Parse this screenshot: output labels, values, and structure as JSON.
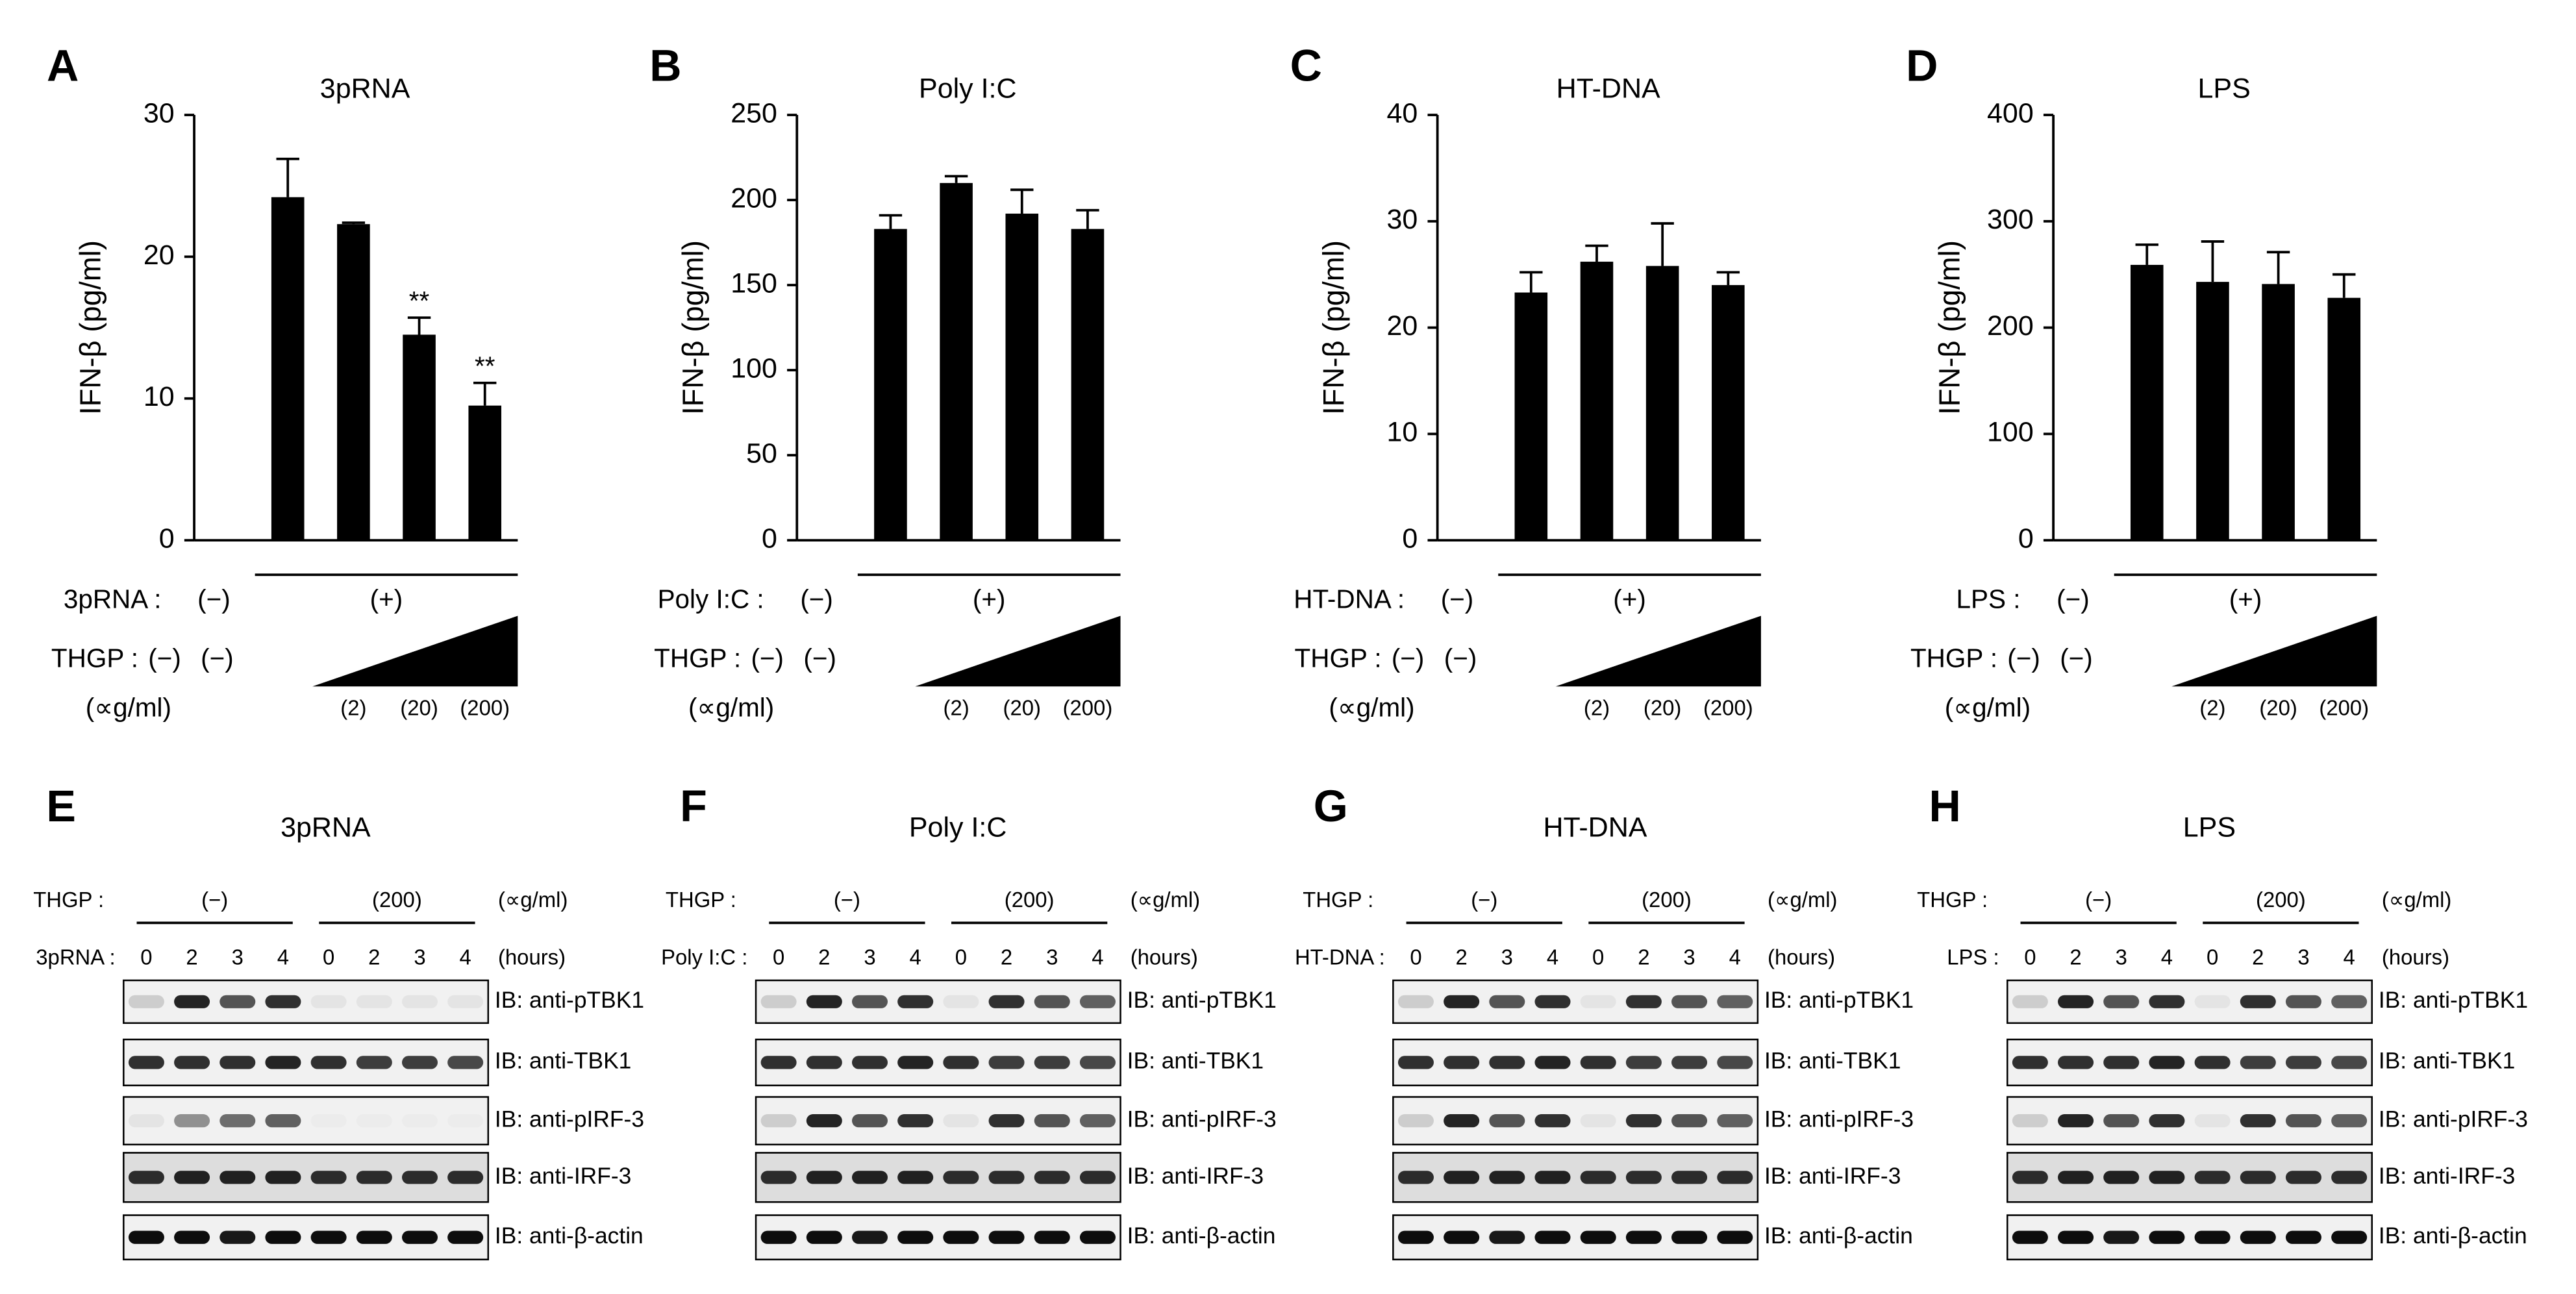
{
  "chart_data": [
    {
      "type": "bar",
      "panel": "A",
      "title": "3pRNA",
      "y_label": "IFN-β (pg/ml)",
      "color": "#000000",
      "categories": [
        null,
        null,
        null,
        null,
        null
      ],
      "values": [
        0,
        24.2,
        22.3,
        14.5,
        9.5
      ],
      "errors": [
        null,
        2.7,
        0.1,
        1.2,
        1.6
      ],
      "annotations": [
        null,
        null,
        null,
        "**",
        "**"
      ],
      "ylim": [
        0,
        30
      ],
      "yticks": [
        0,
        10,
        20,
        30
      ],
      "treatments": {
        "stim_label": "3pRNA :",
        "stim_neg": "(−)",
        "stim_pos": "(+)",
        "dose_label": "THGP :",
        "dose_neg": [
          "(−)",
          "(−)"
        ],
        "unit": "(∝g/ml)",
        "doses": [
          "(2)",
          "(20)",
          "(200)"
        ]
      }
    },
    {
      "type": "bar",
      "panel": "B",
      "title": "Poly I:C",
      "y_label": "IFN-β (pg/ml)",
      "color": "#000000",
      "categories": [
        null,
        null,
        null,
        null,
        null
      ],
      "values": [
        0,
        183,
        210,
        192,
        183
      ],
      "errors": [
        null,
        8,
        4,
        14,
        11
      ],
      "ylim": [
        0,
        250
      ],
      "yticks": [
        0,
        50,
        100,
        150,
        200,
        250
      ],
      "treatments": {
        "stim_label": "Poly I:C :",
        "stim_neg": "(−)",
        "stim_pos": "(+)",
        "dose_label": "THGP :",
        "dose_neg": [
          "(−)",
          "(−)"
        ],
        "unit": "(∝g/ml)",
        "doses": [
          "(2)",
          "(20)",
          "(200)"
        ]
      }
    },
    {
      "type": "bar",
      "panel": "C",
      "title": "HT-DNA",
      "y_label": "IFN-β (pg/ml)",
      "color": "#000000",
      "categories": [
        null,
        null,
        null,
        null,
        null
      ],
      "values": [
        0,
        23.3,
        26.2,
        25.8,
        24
      ],
      "errors": [
        null,
        1.9,
        1.5,
        4.0,
        1.2
      ],
      "ylim": [
        0,
        40
      ],
      "yticks": [
        0,
        10,
        20,
        30,
        40
      ],
      "treatments": {
        "stim_label": "HT-DNA :",
        "stim_neg": "(−)",
        "stim_pos": "(+)",
        "dose_label": "THGP :",
        "dose_neg": [
          "(−)",
          "(−)"
        ],
        "unit": "(∝g/ml)",
        "doses": [
          "(2)",
          "(20)",
          "(200)"
        ]
      }
    },
    {
      "type": "bar",
      "panel": "D",
      "title": "LPS",
      "y_label": "IFN-β (pg/ml)",
      "color": "#000000",
      "categories": [
        null,
        null,
        null,
        null,
        null
      ],
      "values": [
        0,
        259,
        243,
        241,
        228
      ],
      "errors": [
        null,
        19,
        38,
        30,
        22
      ],
      "ylim": [
        0,
        400
      ],
      "yticks": [
        0,
        100,
        200,
        300,
        400
      ],
      "treatments": {
        "stim_label": "LPS :",
        "stim_neg": "(−)",
        "stim_pos": "(+)",
        "dose_label": "THGP :",
        "dose_neg": [
          "(−)",
          "(−)"
        ],
        "unit": "(∝g/ml)",
        "doses": [
          "(2)",
          "(20)",
          "(200)"
        ]
      }
    }
  ],
  "blots": [
    {
      "panel": "E",
      "title": "3pRNA",
      "dose_label": "THGP :",
      "groups": [
        "(−)",
        "(200)"
      ],
      "unit": "(∝g/ml)",
      "stim_label": "3pRNA :",
      "times": [
        "0",
        "2",
        "3",
        "4",
        "0",
        "2",
        "3",
        "4"
      ],
      "time_unit": "(hours)",
      "antibodies": [
        "IB: anti-pTBK1",
        "IB: anti-TBK1",
        "IB: anti-pIRF-3",
        "IB: anti-IRF-3",
        "IB: anti-β-actin"
      ]
    },
    {
      "panel": "F",
      "title": "Poly I:C",
      "dose_label": "THGP :",
      "groups": [
        "(−)",
        "(200)"
      ],
      "unit": "(∝g/ml)",
      "stim_label": "Poly I:C :",
      "times": [
        "0",
        "2",
        "3",
        "4",
        "0",
        "2",
        "3",
        "4"
      ],
      "time_unit": "(hours)",
      "antibodies": [
        "IB: anti-pTBK1",
        "IB: anti-TBK1",
        "IB: anti-pIRF-3",
        "IB: anti-IRF-3",
        "IB: anti-β-actin"
      ]
    },
    {
      "panel": "G",
      "title": "HT-DNA",
      "dose_label": "THGP :",
      "groups": [
        "(−)",
        "(200)"
      ],
      "unit": "(∝g/ml)",
      "stim_label": "HT-DNA :",
      "times": [
        "0",
        "2",
        "3",
        "4",
        "0",
        "2",
        "3",
        "4"
      ],
      "time_unit": "(hours)",
      "antibodies": [
        "IB: anti-pTBK1",
        "IB: anti-TBK1",
        "IB: anti-pIRF-3",
        "IB: anti-IRF-3",
        "IB: anti-β-actin"
      ]
    },
    {
      "panel": "H",
      "title": "LPS",
      "dose_label": "THGP :",
      "groups": [
        "(−)",
        "(200)"
      ],
      "unit": "(∝g/ml)",
      "stim_label": "LPS :",
      "times": [
        "0",
        "2",
        "3",
        "4",
        "0",
        "2",
        "3",
        "4"
      ],
      "time_unit": "(hours)",
      "antibodies": [
        "IB: anti-pTBK1",
        "IB: anti-TBK1",
        "IB: anti-pIRF-3",
        "IB: anti-IRF-3",
        "IB: anti-β-actin"
      ]
    }
  ]
}
